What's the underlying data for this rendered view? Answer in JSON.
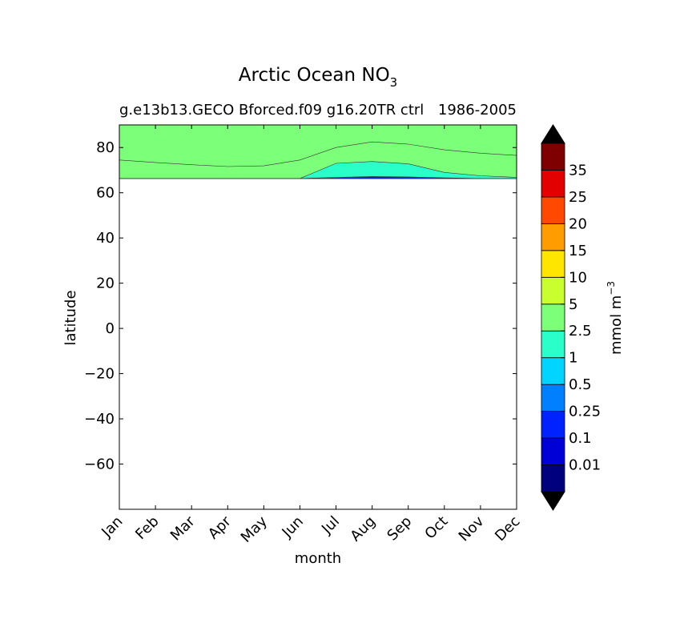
{
  "title": "Arctic Ocean NO",
  "title_subscript": "3",
  "subtitle_left": "g.e13b13.GECO Bforced.f09 g16.20TR ctrl",
  "subtitle_right": "1986-2005",
  "colorbar_label": "mmol m",
  "colorbar_label_exponent": "−3",
  "chart_data": {
    "type": "heatmap",
    "xlabel": "month",
    "ylabel": "latitude",
    "x": [
      "Jan",
      "Feb",
      "Mar",
      "Apr",
      "May",
      "Jun",
      "Jul",
      "Aug",
      "Sep",
      "Oct",
      "Nov",
      "Dec"
    ],
    "ylim": [
      -80,
      90
    ],
    "yticks": [
      "−60",
      "−40",
      "−20",
      "0",
      "20",
      "40",
      "60",
      "80"
    ],
    "ocean_lat_min": 66.3,
    "colorbar": {
      "levels": [
        0.01,
        0.1,
        0.25,
        0.5,
        1,
        2.5,
        5,
        10,
        15,
        20,
        25,
        35
      ],
      "tick_labels": [
        "0.01",
        "0.1",
        "0.25",
        "0.5",
        "1",
        "2.5",
        "5",
        "10",
        "15",
        "20",
        "25",
        "35"
      ],
      "colors": [
        "#00007f",
        "#0000d6",
        "#0022ff",
        "#0080ff",
        "#00d4ff",
        "#2bffc9",
        "#7cff79",
        "#c9ff2e",
        "#ffe600",
        "#ff9c00",
        "#ff4800",
        "#e30000",
        "#7f0000"
      ],
      "under_color": "#000000",
      "over_color": "#000000"
    },
    "contours": [
      {
        "level": 5,
        "band": "2.5-5",
        "boundary_lat": [
          74.5,
          73.4,
          72.4,
          71.6,
          71.9,
          74.5,
          80.0,
          82.5,
          81.5,
          79.0,
          77.5,
          76.5
        ]
      },
      {
        "level": 2.5,
        "band": "1-2.5",
        "boundary_lat": [
          66.3,
          66.3,
          66.3,
          66.3,
          66.3,
          66.3,
          73.0,
          73.8,
          72.8,
          69.0,
          67.5,
          66.8
        ]
      },
      {
        "level": 1,
        "band": "0.5-1",
        "boundary_lat": [
          66.3,
          66.3,
          66.3,
          66.3,
          66.3,
          66.3,
          66.8,
          67.2,
          67.0,
          66.6,
          66.3,
          66.3
        ]
      }
    ]
  }
}
